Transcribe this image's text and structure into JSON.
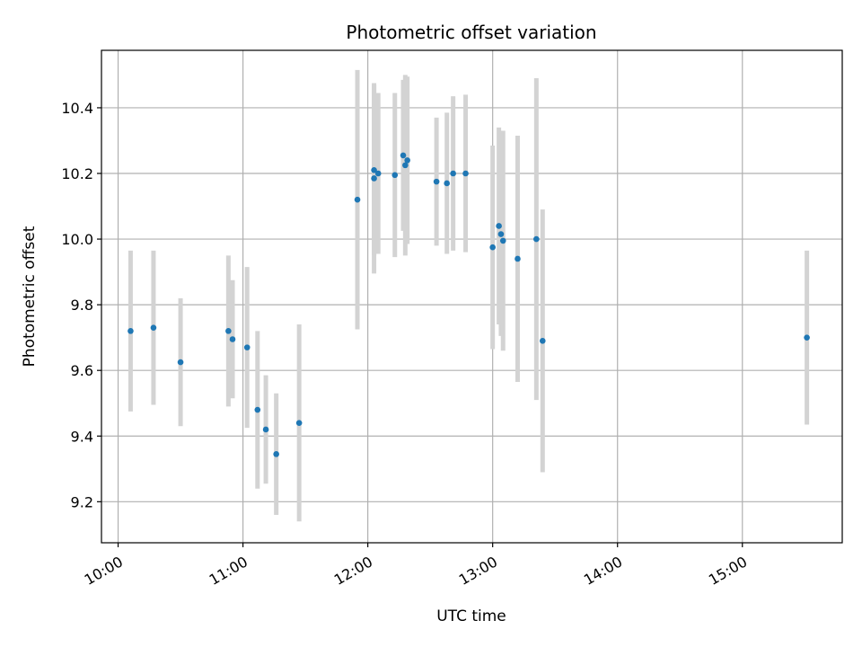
{
  "chart_data": {
    "type": "scatter",
    "title": "Photometric offset variation",
    "xlabel": "UTC time",
    "ylabel": "Photometric offset",
    "xlim": [
      "09:52",
      "15:48"
    ],
    "ylim": [
      9.075,
      10.575
    ],
    "x_ticks": [
      "10:00",
      "11:00",
      "12:00",
      "13:00",
      "14:00",
      "15:00"
    ],
    "y_ticks": [
      "9.2",
      "9.4",
      "9.6",
      "9.8",
      "10.0",
      "10.2",
      "10.4"
    ],
    "grid": true,
    "colors": {
      "point": "#1f77b4",
      "errorbar": "#d3d3d3",
      "grid": "#b0b0b0"
    },
    "points": [
      {
        "x": "10:06",
        "y": 9.72,
        "yerr": 0.245
      },
      {
        "x": "10:17",
        "y": 9.73,
        "yerr": 0.235
      },
      {
        "x": "10:30",
        "y": 9.625,
        "yerr": 0.195
      },
      {
        "x": "10:53",
        "y": 9.72,
        "yerr": 0.23
      },
      {
        "x": "10:55",
        "y": 9.695,
        "yerr": 0.18
      },
      {
        "x": "11:02",
        "y": 9.67,
        "yerr": 0.245
      },
      {
        "x": "11:07",
        "y": 9.48,
        "yerr": 0.24
      },
      {
        "x": "11:11",
        "y": 9.42,
        "yerr": 0.165
      },
      {
        "x": "11:16",
        "y": 9.345,
        "yerr": 0.185
      },
      {
        "x": "11:27",
        "y": 9.44,
        "yerr": 0.3
      },
      {
        "x": "11:55",
        "y": 10.12,
        "yerr": 0.395
      },
      {
        "x": "12:03",
        "y": 10.21,
        "yerr": 0.26
      },
      {
        "x": "12:03",
        "y": 10.185,
        "yerr": 0.29
      },
      {
        "x": "12:05",
        "y": 10.2,
        "yerr": 0.245
      },
      {
        "x": "12:13",
        "y": 10.195,
        "yerr": 0.25
      },
      {
        "x": "12:17",
        "y": 10.255,
        "yerr": 0.23
      },
      {
        "x": "12:18",
        "y": 10.225,
        "yerr": 0.275
      },
      {
        "x": "12:19",
        "y": 10.24,
        "yerr": 0.255
      },
      {
        "x": "12:33",
        "y": 10.175,
        "yerr": 0.195
      },
      {
        "x": "12:38",
        "y": 10.17,
        "yerr": 0.215
      },
      {
        "x": "12:41",
        "y": 10.2,
        "yerr": 0.235
      },
      {
        "x": "12:47",
        "y": 10.2,
        "yerr": 0.24
      },
      {
        "x": "13:00",
        "y": 9.975,
        "yerr": 0.31
      },
      {
        "x": "13:03",
        "y": 10.04,
        "yerr": 0.3
      },
      {
        "x": "13:04",
        "y": 10.015,
        "yerr": 0.31
      },
      {
        "x": "13:05",
        "y": 9.995,
        "yerr": 0.335
      },
      {
        "x": "13:12",
        "y": 9.94,
        "yerr": 0.375
      },
      {
        "x": "13:21",
        "y": 10.0,
        "yerr": 0.49
      },
      {
        "x": "13:24",
        "y": 9.69,
        "yerr": 0.4
      },
      {
        "x": "15:31",
        "y": 9.7,
        "yerr": 0.265
      }
    ]
  }
}
